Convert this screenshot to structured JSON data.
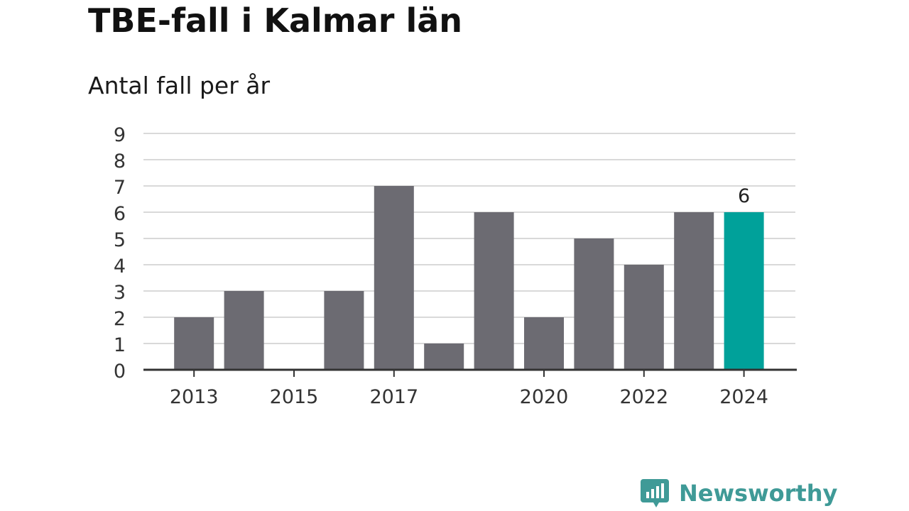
{
  "header": {
    "title": "TBE-fall i Kalmar län",
    "subtitle": "Antal fall per år"
  },
  "brand": {
    "name": "Newsworthy",
    "color": "#3f9a97",
    "icon": "bar-chart-speech-bubble-icon"
  },
  "colors": {
    "bar": "#6c6b72",
    "highlight": "#00a19a",
    "grid": "#d9d9d9",
    "axis": "#333333",
    "text": "#333333"
  },
  "chart_data": {
    "type": "bar",
    "categories": [
      "2013",
      "2014",
      "2015",
      "2016",
      "2017",
      "2018",
      "2019",
      "2020",
      "2021",
      "2022",
      "2023",
      "2024"
    ],
    "values": [
      2,
      3,
      0,
      3,
      7,
      1,
      6,
      2,
      5,
      4,
      6,
      6
    ],
    "x_tick_labels": [
      "2013",
      "2015",
      "2017",
      "2020",
      "2022",
      "2024"
    ],
    "y_ticks": [
      0,
      1,
      2,
      3,
      4,
      5,
      6,
      7,
      8,
      9
    ],
    "ylim": [
      0,
      9
    ],
    "highlight_category": "2024",
    "data_labels": [
      {
        "category": "2024",
        "text": "6"
      }
    ],
    "grid": true,
    "legend": "none",
    "title": "TBE-fall i Kalmar län",
    "subtitle": "Antal fall per år",
    "xlabel": "",
    "ylabel": ""
  }
}
